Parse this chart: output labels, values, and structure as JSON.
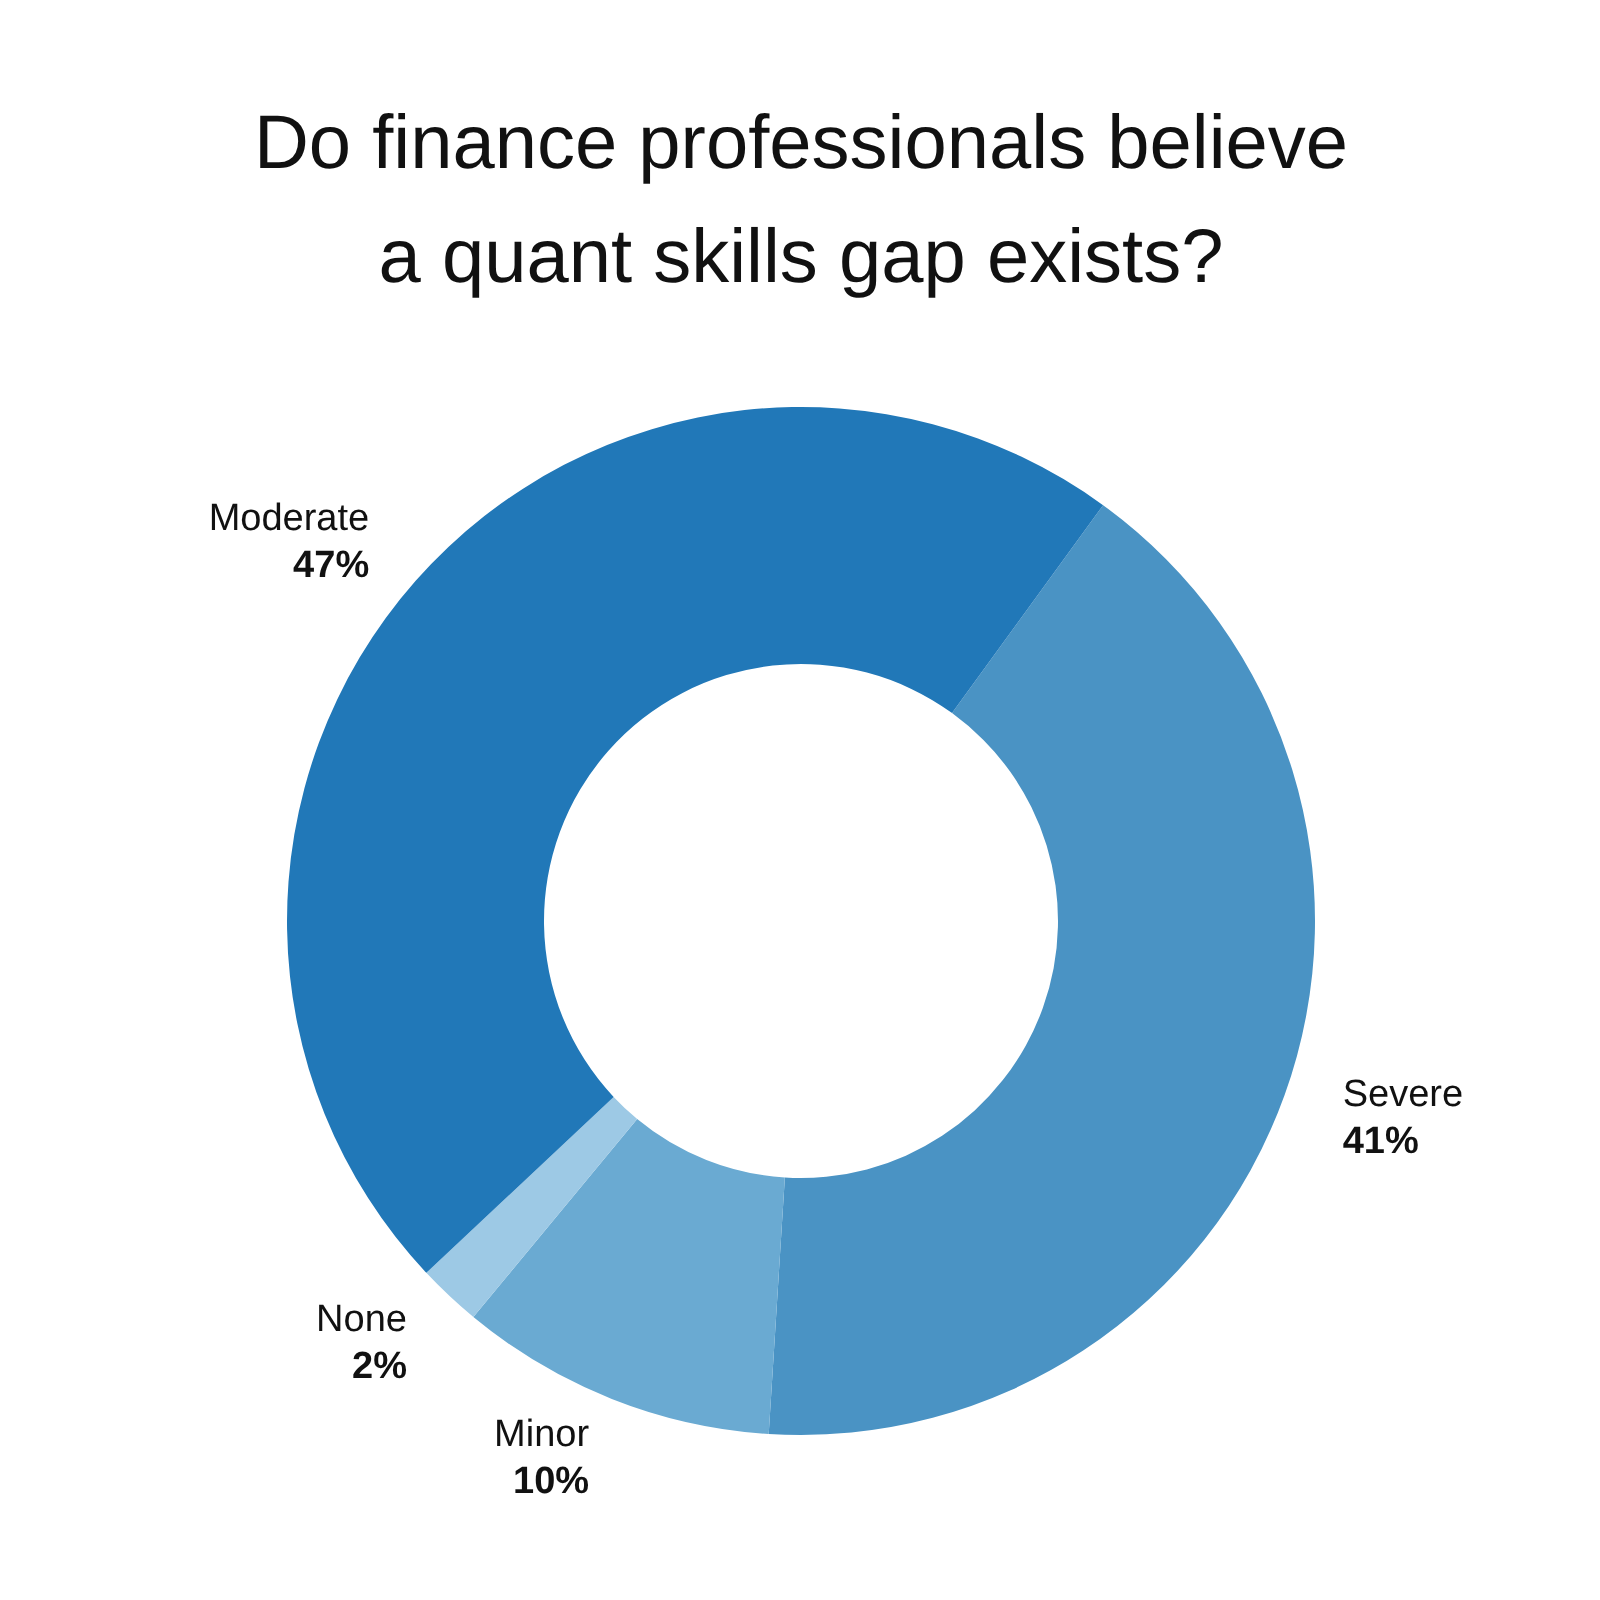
{
  "chart_data": {
    "type": "donut",
    "title": "Do finance professionals believe a quant skills gap exists?",
    "categories": [
      "Severe",
      "Minor",
      "None",
      "Moderate"
    ],
    "values": [
      41,
      10,
      2,
      47
    ],
    "value_labels": [
      "41%",
      "10%",
      "2%",
      "47%"
    ],
    "colors": [
      "#4a93c4",
      "#6aaad2",
      "#9dc9e5",
      "#2178b8"
    ]
  }
}
